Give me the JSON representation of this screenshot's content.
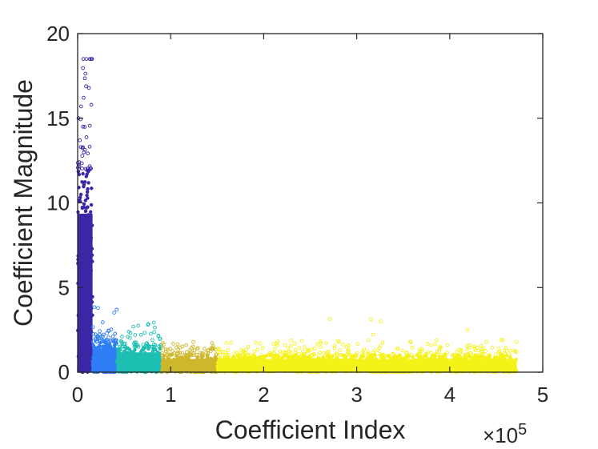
{
  "chart_data": {
    "type": "scatter",
    "title": "",
    "xlabel": "Coefficient Index",
    "ylabel": "Coefficient Magnitude",
    "x_exponent_label": "×10",
    "x_exponent_power": "5",
    "x_scale_factor": 100000,
    "xlim": [
      0,
      500000
    ],
    "ylim": [
      0,
      20
    ],
    "x_ticks": [
      0,
      100000,
      200000,
      300000,
      400000,
      500000
    ],
    "x_tick_labels": [
      "0",
      "1",
      "2",
      "3",
      "4",
      "5"
    ],
    "y_ticks": [
      0,
      5,
      10,
      15,
      20
    ],
    "y_tick_labels": [
      "0",
      "5",
      "10",
      "15",
      "20"
    ],
    "grid": false,
    "legend": "none",
    "series": [
      {
        "color": "#3a27a6",
        "x_range": [
          0,
          16000
        ],
        "dense_max": 12,
        "max": 18.5,
        "outlier_max": 18.5
      },
      {
        "color": "#2f7ef5",
        "x_range": [
          16000,
          42000
        ],
        "dense_max": 1.8,
        "max": 2.6,
        "outlier_max": 4.0
      },
      {
        "color": "#1cbfb2",
        "x_range": [
          42000,
          90000
        ],
        "dense_max": 1.5,
        "max": 2.4,
        "outlier_max": 3.0
      },
      {
        "color": "#cdb82b",
        "x_range": [
          90000,
          150000
        ],
        "dense_max": 1.0,
        "max": 1.6,
        "outlier_max": 1.8
      },
      {
        "color": "#f5f218",
        "x_range": [
          150000,
          472000
        ],
        "dense_max": 1.0,
        "max": 1.9,
        "outlier_max": 3.2
      }
    ]
  }
}
